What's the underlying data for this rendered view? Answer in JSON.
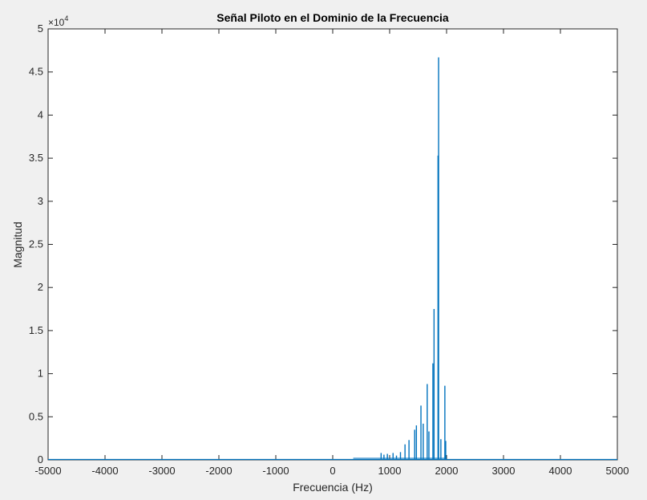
{
  "chart_data": {
    "type": "line",
    "title": "Señal Piloto en el Dominio de la Frecuencia",
    "xlabel": "Frecuencia (Hz)",
    "ylabel": "Magnitud",
    "y_exponent_base": "×10",
    "y_exponent_power": "4",
    "xlim": [
      -5000,
      5000
    ],
    "ylim": [
      0,
      50000
    ],
    "xticks": [
      -5000,
      -4000,
      -3000,
      -2000,
      -1000,
      0,
      1000,
      2000,
      3000,
      4000,
      5000
    ],
    "xtick_labels": [
      "-5000",
      "-4000",
      "-3000",
      "-2000",
      "-1000",
      "0",
      "1000",
      "2000",
      "3000",
      "4000",
      "5000"
    ],
    "yticks": [
      0,
      5000,
      10000,
      15000,
      20000,
      25000,
      30000,
      35000,
      40000,
      45000,
      50000
    ],
    "ytick_labels": [
      "0",
      "0.5",
      "1",
      "1.5",
      "2",
      "2.5",
      "3",
      "3.5",
      "4",
      "4.5",
      "5"
    ],
    "grid": false,
    "line_color": "#0072bd",
    "peaks": [
      {
        "x": 850,
        "y": 800
      },
      {
        "x": 900,
        "y": 600
      },
      {
        "x": 960,
        "y": 700
      },
      {
        "x": 1060,
        "y": 800
      },
      {
        "x": 1120,
        "y": 500
      },
      {
        "x": 1190,
        "y": 900
      },
      {
        "x": 1270,
        "y": 1800
      },
      {
        "x": 1340,
        "y": 2300
      },
      {
        "x": 1440,
        "y": 3500
      },
      {
        "x": 1470,
        "y": 4000
      },
      {
        "x": 1550,
        "y": 6300
      },
      {
        "x": 1590,
        "y": 4200
      },
      {
        "x": 1660,
        "y": 8800
      },
      {
        "x": 1690,
        "y": 3300
      },
      {
        "x": 1760,
        "y": 11200
      },
      {
        "x": 1780,
        "y": 17500
      },
      {
        "x": 1850,
        "y": 35300
      },
      {
        "x": 1860,
        "y": 46700
      },
      {
        "x": 1900,
        "y": 2400
      },
      {
        "x": 1970,
        "y": 8600
      },
      {
        "x": 1985,
        "y": 2200
      }
    ]
  },
  "colors": {
    "figure_background": "#f0f0f0",
    "axes_background": "#ffffff",
    "axes_color": "#262626",
    "line_color": "#0072bd"
  }
}
